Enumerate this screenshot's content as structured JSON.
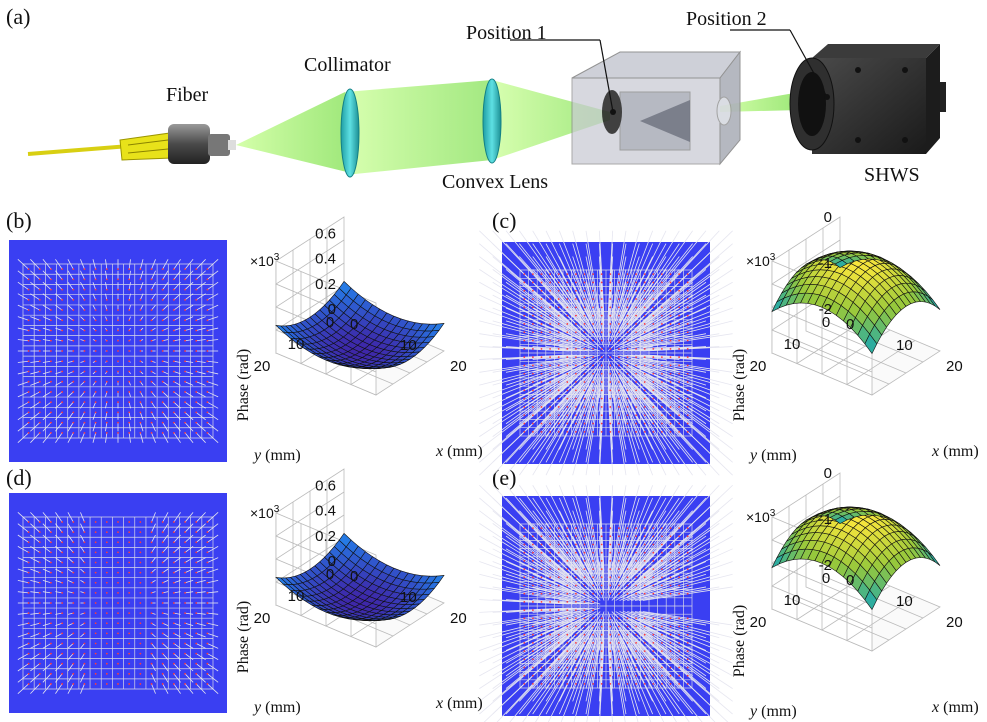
{
  "setup": {
    "panel_label": "(a)",
    "fiber_label": "Fiber",
    "collimator_label": "Collimator",
    "lens_label": "Convex Lens",
    "position1_label": "Position 1",
    "position2_label": "Position 2",
    "shws_label": "SHWS",
    "colors": {
      "beam": "#8ef060",
      "lens": "#33c5c9",
      "fiber": "#e8e21a",
      "camera": "#2a2a2a"
    }
  },
  "panels": [
    {
      "id": "b",
      "label": "(b)",
      "spot_pattern": "converging",
      "surface": "bowl",
      "exponent": "×10",
      "exponent_power": "3",
      "zlabel": "Phase (rad)",
      "zticks": [
        "0.6",
        "0.4",
        "0.2",
        "0"
      ],
      "yticks": [
        "20",
        "10",
        "0"
      ],
      "xticks": [
        "0",
        "10",
        "20"
      ],
      "ylabel_sym": "y",
      "xlabel_sym": "x",
      "unit": "(mm)"
    },
    {
      "id": "c",
      "label": "(c)",
      "spot_pattern": "diverging",
      "surface": "dome",
      "exponent": "×10",
      "exponent_power": "3",
      "zlabel": "Phase (rad)",
      "zticks": [
        "0",
        "-1",
        "-2"
      ],
      "yticks": [
        "20",
        "10",
        "0"
      ],
      "xticks": [
        "0",
        "10",
        "20"
      ],
      "ylabel_sym": "y",
      "xlabel_sym": "x",
      "unit": "(mm)"
    },
    {
      "id": "d",
      "label": "(d)",
      "spot_pattern": "converging-gap",
      "surface": "bowl",
      "exponent": "×10",
      "exponent_power": "3",
      "zlabel": "Phase (rad)",
      "zticks": [
        "0.6",
        "0.4",
        "0.2",
        "0"
      ],
      "yticks": [
        "20",
        "10",
        "0"
      ],
      "xticks": [
        "0",
        "10",
        "20"
      ],
      "ylabel_sym": "y",
      "xlabel_sym": "x",
      "unit": "(mm)"
    },
    {
      "id": "e",
      "label": "(e)",
      "spot_pattern": "diverging-gap",
      "surface": "dome",
      "exponent": "×10",
      "exponent_power": "3",
      "zlabel": "Phase (rad)",
      "zticks": [
        "0",
        "-1",
        "-2"
      ],
      "yticks": [
        "20",
        "10",
        "0"
      ],
      "xticks": [
        "0",
        "10",
        "20"
      ],
      "ylabel_sym": "y",
      "xlabel_sym": "x",
      "unit": "(mm)"
    }
  ]
}
